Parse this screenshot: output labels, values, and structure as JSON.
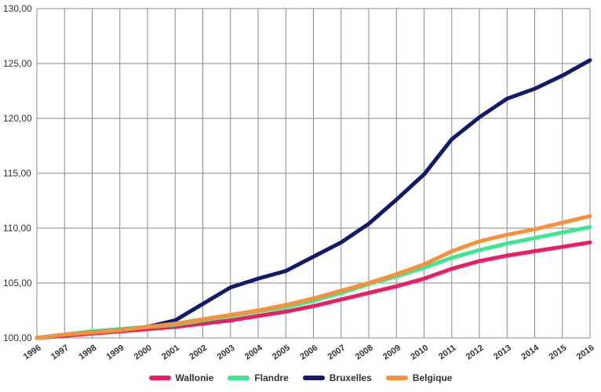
{
  "chart_data": {
    "type": "line",
    "title": "",
    "xlabel": "",
    "ylabel": "",
    "categories": [
      "1996",
      "1997",
      "1998",
      "1999",
      "2000",
      "2001",
      "2002",
      "2003",
      "2004",
      "2005",
      "2006",
      "2007",
      "2008",
      "2009",
      "2010",
      "2011",
      "2012",
      "2013",
      "2014",
      "2015",
      "2016"
    ],
    "ylim": [
      100,
      130
    ],
    "yticks": [
      "100,00",
      "105,00",
      "110,00",
      "115,00",
      "120,00",
      "125,00",
      "130,00"
    ],
    "grid": true,
    "legend_position": "bottom",
    "series": [
      {
        "name": "Wallonie",
        "color": "#ee1d63",
        "values": [
          100.0,
          100.2,
          100.4,
          100.6,
          100.8,
          101.0,
          101.3,
          101.6,
          102.0,
          102.4,
          102.9,
          103.5,
          104.1,
          104.7,
          105.4,
          106.3,
          107.0,
          107.5,
          107.9,
          108.3,
          108.7
        ]
      },
      {
        "name": "Flandre",
        "color": "#3de68f",
        "values": [
          100.0,
          100.3,
          100.6,
          100.8,
          101.0,
          101.2,
          101.6,
          102.0,
          102.4,
          102.8,
          103.4,
          104.1,
          104.9,
          105.6,
          106.4,
          107.3,
          108.0,
          108.6,
          109.1,
          109.6,
          110.1
        ]
      },
      {
        "name": "Bruxelles",
        "color": "#121a6b",
        "values": [
          100.0,
          100.3,
          100.5,
          100.7,
          101.0,
          101.6,
          103.1,
          104.6,
          105.4,
          106.1,
          107.4,
          108.7,
          110.4,
          112.6,
          114.9,
          118.1,
          120.1,
          121.8,
          122.7,
          123.9,
          125.3
        ]
      },
      {
        "name": "Belgique",
        "color": "#f7923a",
        "values": [
          100.0,
          100.3,
          100.5,
          100.7,
          101.0,
          101.3,
          101.7,
          102.1,
          102.5,
          103.0,
          103.6,
          104.3,
          105.0,
          105.8,
          106.7,
          107.9,
          108.8,
          109.4,
          109.9,
          110.5,
          111.1
        ]
      }
    ]
  }
}
